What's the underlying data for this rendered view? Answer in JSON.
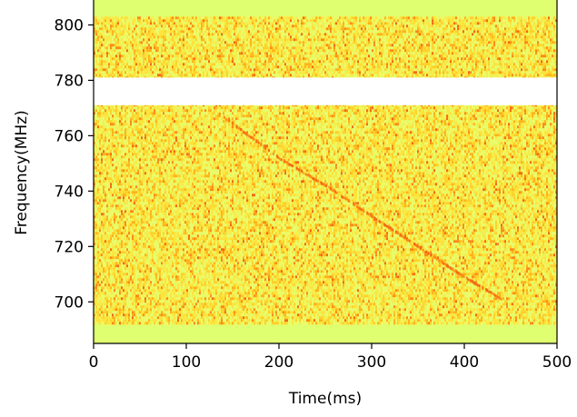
{
  "chart_data": {
    "type": "heatmap",
    "title": "",
    "xlabel": "Time(ms)",
    "ylabel": "Frequency(MHz)",
    "xlim": [
      0,
      500
    ],
    "ylim": [
      685,
      809
    ],
    "x_ticks": [
      0,
      100,
      200,
      300,
      400,
      500
    ],
    "x_tick_labels": [
      "0",
      "100",
      "200",
      "300",
      "400",
      "500"
    ],
    "y_ticks": [
      700,
      720,
      740,
      760,
      780,
      800
    ],
    "y_tick_labels": [
      "700",
      "720",
      "740",
      "760",
      "780",
      "800"
    ],
    "colormap": "light yellow-green to orange-red (noise background)",
    "background_color": "#e0ff70",
    "noise_colors": [
      "#e9fb6a",
      "#f3ee50",
      "#ffe23a",
      "#ffd02a",
      "#ffb21c",
      "#fb8a18",
      "#f46a14"
    ],
    "data_band_mhz": [
      692,
      803
    ],
    "masked_band_mhz": [
      771,
      781
    ],
    "masked_color": "#ffffff",
    "grid": false,
    "legend": "none",
    "dispersed_signal": {
      "description": "faint dispersed sweep from high to low frequency",
      "points": [
        {
          "x": 135,
          "y": 768
        },
        {
          "x": 200,
          "y": 752
        },
        {
          "x": 250,
          "y": 742
        },
        {
          "x": 300,
          "y": 731
        },
        {
          "x": 350,
          "y": 720
        },
        {
          "x": 400,
          "y": 709
        },
        {
          "x": 440,
          "y": 701
        }
      ]
    }
  }
}
